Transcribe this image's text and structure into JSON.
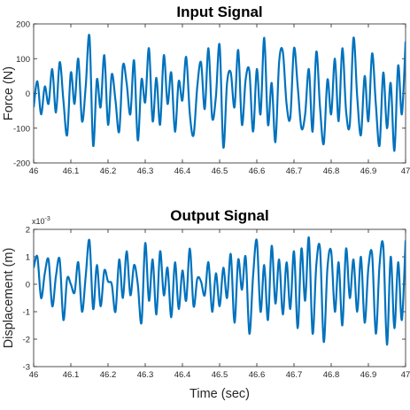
{
  "chart_data": [
    {
      "type": "line",
      "title": "Input Signal",
      "xlabel": "",
      "ylabel": "Force (N)",
      "xlim": [
        46,
        47
      ],
      "ylim": [
        -200,
        200
      ],
      "xticks": [
        "46",
        "46.1",
        "46.2",
        "46.3",
        "46.4",
        "46.5",
        "46.6",
        "46.7",
        "46.8",
        "46.9",
        "47"
      ],
      "yticks": [
        "200",
        "100",
        "0",
        "-100",
        "-200"
      ],
      "color": "#0072BD",
      "grid": false,
      "series": [
        {
          "x": [
            46.0,
            46.01,
            46.02,
            46.03,
            46.04,
            46.05,
            46.06,
            46.07,
            46.08,
            46.09,
            46.1,
            46.11,
            46.12,
            46.13,
            46.14,
            46.15,
            46.16,
            46.17,
            46.18,
            46.19,
            46.2,
            46.21,
            46.22,
            46.23,
            46.24,
            46.25,
            46.26,
            46.27,
            46.28,
            46.29,
            46.3,
            46.31,
            46.32,
            46.33,
            46.34,
            46.35,
            46.36,
            46.37,
            46.38,
            46.39,
            46.4,
            46.41,
            46.42,
            46.43,
            46.44,
            46.45,
            46.46,
            46.47,
            46.48,
            46.49,
            46.5,
            46.51,
            46.52,
            46.53,
            46.54,
            46.55,
            46.56,
            46.57,
            46.58,
            46.59,
            46.6,
            46.61,
            46.62,
            46.63,
            46.64,
            46.65,
            46.66,
            46.67,
            46.68,
            46.69,
            46.7,
            46.71,
            46.72,
            46.73,
            46.74,
            46.75,
            46.76,
            46.77,
            46.78,
            46.79,
            46.8,
            46.81,
            46.82,
            46.83,
            46.84,
            46.85,
            46.86,
            46.87,
            46.88,
            46.89,
            46.9,
            46.91,
            46.92,
            46.93,
            46.94,
            46.95,
            46.96,
            46.97,
            46.98,
            46.99,
            47.0
          ],
          "values": [
            -40,
            35,
            -60,
            20,
            -30,
            70,
            -55,
            90,
            -20,
            -120,
            60,
            -30,
            100,
            -80,
            20,
            165,
            -150,
            40,
            -40,
            110,
            -90,
            55,
            -20,
            -110,
            80,
            30,
            -60,
            95,
            -135,
            40,
            -25,
            130,
            -80,
            45,
            -90,
            110,
            -30,
            60,
            -110,
            35,
            -20,
            105,
            -60,
            -120,
            20,
            90,
            -45,
            130,
            -70,
            -10,
            140,
            -155,
            30,
            60,
            -40,
            125,
            -90,
            40,
            65,
            -110,
            70,
            -60,
            160,
            -90,
            30,
            -140,
            90,
            120,
            -30,
            -70,
            130,
            20,
            -100,
            -60,
            70,
            -110,
            120,
            -40,
            -145,
            40,
            -60,
            100,
            -80,
            130,
            -50,
            -90,
            160,
            -10,
            -120,
            50,
            -80,
            115,
            -30,
            -150,
            60,
            -100,
            30,
            -165,
            80,
            -60,
            150
          ]
        }
      ]
    },
    {
      "type": "line",
      "title": "Output Signal",
      "xlabel": "Time (sec)",
      "ylabel": "Displacement (m)",
      "y_multiplier": "x10",
      "y_exponent": "-3",
      "xlim": [
        46,
        47
      ],
      "ylim": [
        -3,
        2
      ],
      "xticks": [
        "46",
        "46.1",
        "46.2",
        "46.3",
        "46.4",
        "46.5",
        "46.6",
        "46.7",
        "46.8",
        "46.9",
        "47"
      ],
      "yticks": [
        "2",
        "1",
        "0",
        "-1",
        "-2",
        "-3"
      ],
      "color": "#0072BD",
      "grid": false,
      "series": [
        {
          "x": [
            46.0,
            46.01,
            46.02,
            46.03,
            46.04,
            46.05,
            46.06,
            46.07,
            46.08,
            46.09,
            46.1,
            46.11,
            46.12,
            46.13,
            46.14,
            46.15,
            46.16,
            46.17,
            46.18,
            46.19,
            46.2,
            46.21,
            46.22,
            46.23,
            46.24,
            46.25,
            46.26,
            46.27,
            46.28,
            46.29,
            46.3,
            46.31,
            46.32,
            46.33,
            46.34,
            46.35,
            46.36,
            46.37,
            46.38,
            46.39,
            46.4,
            46.41,
            46.42,
            46.43,
            46.44,
            46.45,
            46.46,
            46.47,
            46.48,
            46.49,
            46.5,
            46.51,
            46.52,
            46.53,
            46.54,
            46.55,
            46.56,
            46.57,
            46.58,
            46.59,
            46.6,
            46.61,
            46.62,
            46.63,
            46.64,
            46.65,
            46.66,
            46.67,
            46.68,
            46.69,
            46.7,
            46.71,
            46.72,
            46.73,
            46.74,
            46.75,
            46.76,
            46.77,
            46.78,
            46.79,
            46.8,
            46.81,
            46.82,
            46.83,
            46.84,
            46.85,
            46.86,
            46.87,
            46.88,
            46.89,
            46.9,
            46.91,
            46.92,
            46.93,
            46.94,
            46.95,
            46.96,
            46.97,
            46.98,
            46.99,
            47.0
          ],
          "values": [
            0.6,
            1.0,
            -0.5,
            0.4,
            0.9,
            -0.8,
            0.3,
            0.9,
            -1.3,
            0.2,
            0.0,
            -0.3,
            0.8,
            -1.0,
            0.3,
            1.6,
            -0.9,
            0.7,
            -0.8,
            0.5,
            0.1,
            0.0,
            -1.0,
            0.9,
            -0.5,
            1.2,
            -0.4,
            0.7,
            0.0,
            -1.4,
            1.5,
            -0.6,
            0.9,
            -1.1,
            1.2,
            -0.4,
            0.6,
            -1.2,
            0.8,
            -0.9,
            0.5,
            -0.6,
            1.3,
            -0.8,
            0.2,
            0.1,
            -0.4,
            0.8,
            -1.0,
            0.4,
            -0.8,
            0.6,
            -0.5,
            1.1,
            -1.4,
            0.9,
            -0.2,
            1.0,
            -1.8,
            0.3,
            1.6,
            -1.0,
            0.7,
            -1.3,
            1.4,
            -0.7,
            0.9,
            -1.1,
            0.8,
            -0.9,
            1.2,
            -1.6,
            1.3,
            -0.6,
            1.7,
            -1.8,
            0.7,
            1.3,
            -2.1,
            0.6,
            1.2,
            -1.0,
            0.8,
            -1.5,
            1.3,
            -0.5,
            0.9,
            -1.0,
            1.0,
            -1.4,
            0.6,
            1.1,
            -1.8,
            0.7,
            1.4,
            -2.2,
            1.0,
            -1.6,
            0.8,
            -1.3,
            1.6
          ]
        }
      ]
    }
  ]
}
